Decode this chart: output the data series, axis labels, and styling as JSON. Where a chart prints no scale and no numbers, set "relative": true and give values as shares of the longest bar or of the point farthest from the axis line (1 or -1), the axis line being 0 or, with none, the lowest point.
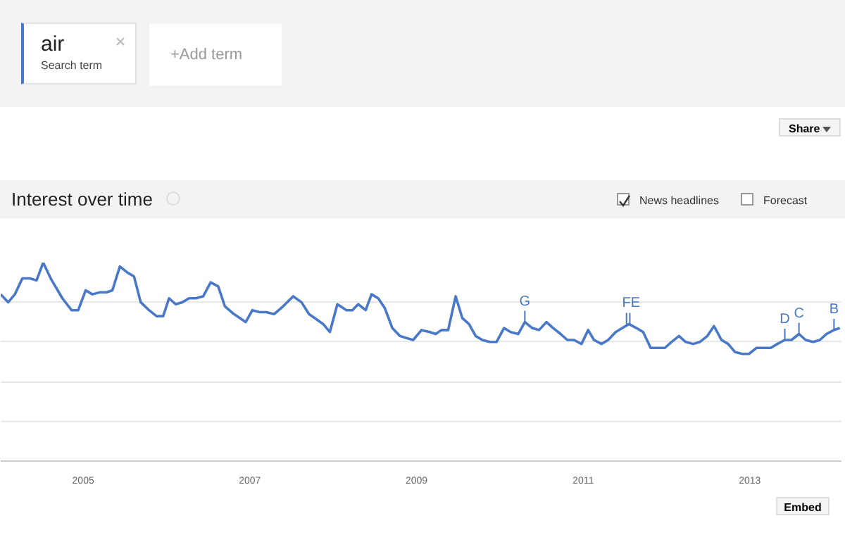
{
  "chart_data": {
    "type": "line",
    "title": "Interest over time",
    "relative": true,
    "grid": "y",
    "marker": "none",
    "line_style": "solid",
    "x": [
      2004.01,
      2004.1,
      2004.18,
      2004.27,
      2004.36,
      2004.44,
      2004.52,
      2004.61,
      2004.75,
      2004.86,
      2004.94,
      2005.03,
      2005.11,
      2005.2,
      2005.28,
      2005.35,
      2005.44,
      2005.53,
      2005.61,
      2005.69,
      2005.79,
      2005.88,
      2005.96,
      2006.03,
      2006.11,
      2006.19,
      2006.27,
      2006.35,
      2006.44,
      2006.53,
      2006.62,
      2006.7,
      2006.81,
      2006.95,
      2007.03,
      2007.12,
      2007.2,
      2007.29,
      2007.4,
      2007.52,
      2007.62,
      2007.71,
      2007.78,
      2007.88,
      2007.96,
      2008.05,
      2008.16,
      2008.23,
      2008.3,
      2008.39,
      2008.46,
      2008.54,
      2008.62,
      2008.71,
      2008.8,
      2008.88,
      2008.96,
      2009.06,
      2009.16,
      2009.23,
      2009.3,
      2009.38,
      2009.47,
      2009.55,
      2009.63,
      2009.71,
      2009.79,
      2009.88,
      2009.96,
      2010.05,
      2010.13,
      2010.22,
      2010.3,
      2010.39,
      2010.47,
      2010.56,
      2010.64,
      2010.73,
      2010.81,
      2010.89,
      2010.98,
      2011.06,
      2011.13,
      2011.22,
      2011.3,
      2011.39,
      2011.47,
      2011.55,
      2011.64,
      2011.72,
      2011.81,
      2011.89,
      2011.98,
      2012.06,
      2012.15,
      2012.23,
      2012.32,
      2012.4,
      2012.49,
      2012.57,
      2012.66,
      2012.74,
      2012.82,
      2012.91,
      2012.99,
      2013.08,
      2013.16,
      2013.25,
      2013.33,
      2013.42,
      2013.5,
      2013.59,
      2013.67,
      2013.76,
      2013.84,
      2013.92,
      2014.01,
      2014.08
    ],
    "series": [
      {
        "color": "#4a78c8",
        "values": [
          0.84,
          0.8,
          0.84,
          0.92,
          0.92,
          0.91,
          1.0,
          0.92,
          0.82,
          0.76,
          0.76,
          0.86,
          0.84,
          0.85,
          0.85,
          0.86,
          0.98,
          0.95,
          0.93,
          0.8,
          0.76,
          0.73,
          0.73,
          0.82,
          0.79,
          0.8,
          0.82,
          0.82,
          0.83,
          0.9,
          0.88,
          0.78,
          0.74,
          0.7,
          0.76,
          0.75,
          0.75,
          0.74,
          0.78,
          0.83,
          0.8,
          0.74,
          0.72,
          0.69,
          0.65,
          0.79,
          0.76,
          0.76,
          0.79,
          0.76,
          0.84,
          0.82,
          0.77,
          0.67,
          0.63,
          0.62,
          0.61,
          0.66,
          0.65,
          0.64,
          0.66,
          0.66,
          0.83,
          0.72,
          0.69,
          0.63,
          0.61,
          0.6,
          0.6,
          0.67,
          0.65,
          0.64,
          0.7,
          0.67,
          0.66,
          0.7,
          0.67,
          0.64,
          0.61,
          0.61,
          0.59,
          0.66,
          0.61,
          0.59,
          0.61,
          0.65,
          0.67,
          0.69,
          0.67,
          0.65,
          0.57,
          0.57,
          0.57,
          0.6,
          0.63,
          0.6,
          0.59,
          0.6,
          0.63,
          0.68,
          0.61,
          0.59,
          0.55,
          0.54,
          0.54,
          0.57,
          0.57,
          0.57,
          0.59,
          0.61,
          0.61,
          0.64,
          0.61,
          0.6,
          0.61,
          0.64,
          0.66,
          0.67
        ]
      }
    ],
    "xlim": [
      2004.01,
      2014.1
    ],
    "xticks": [
      2005,
      2007,
      2009,
      2011,
      2013
    ],
    "annotations": [
      "air",
      "Search term",
      "+Add term",
      "Share",
      "News headlines",
      "Forecast",
      "Embed",
      {
        "text": "G",
        "x": 2010.3,
        "y": 0.7
      },
      {
        "text": "F",
        "x": 2011.52,
        "y": 0.69
      },
      {
        "text": "E",
        "x": 2011.56,
        "y": 0.69
      },
      {
        "text": "D",
        "x": 2013.42,
        "y": 0.61
      },
      {
        "text": "C",
        "x": 2013.59,
        "y": 0.64
      },
      {
        "text": "B",
        "x": 2014.01,
        "y": 0.66
      }
    ]
  }
}
